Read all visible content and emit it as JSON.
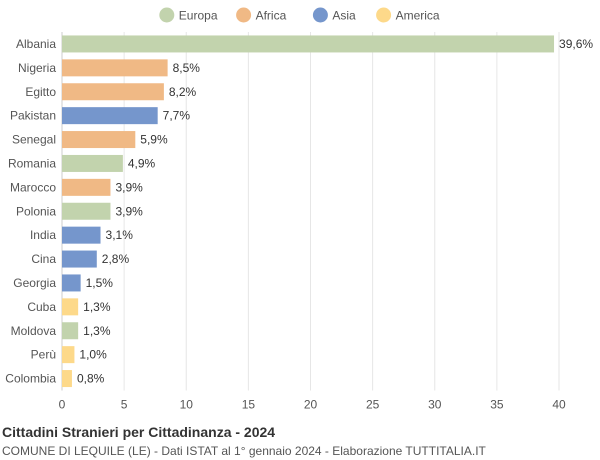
{
  "chart_data": {
    "type": "bar",
    "orientation": "horizontal",
    "title": "Cittadini Stranieri per Cittadinanza - 2024",
    "subtitle": "COMUNE DI LEQUILE (LE) - Dati ISTAT al 1° gennaio 2024 - Elaborazione TUTTITALIA.IT",
    "legend": [
      {
        "name": "Europa",
        "color": "#c2d3ad"
      },
      {
        "name": "Africa",
        "color": "#f0b985"
      },
      {
        "name": "Asia",
        "color": "#7596cc"
      },
      {
        "name": "America",
        "color": "#fdd98a"
      }
    ],
    "legend_position": "top-center",
    "categories": [
      "Albania",
      "Nigeria",
      "Egitto",
      "Pakistan",
      "Senegal",
      "Romania",
      "Marocco",
      "Polonia",
      "India",
      "Cina",
      "Georgia",
      "Cuba",
      "Moldova",
      "Perù",
      "Colombia"
    ],
    "values": [
      39.6,
      8.5,
      8.2,
      7.7,
      5.9,
      4.9,
      3.9,
      3.9,
      3.1,
      2.8,
      1.5,
      1.3,
      1.3,
      1.0,
      0.8
    ],
    "value_labels": [
      "39,6%",
      "8,5%",
      "8,2%",
      "7,7%",
      "5,9%",
      "4,9%",
      "3,9%",
      "3,9%",
      "3,1%",
      "2,8%",
      "1,5%",
      "1,3%",
      "1,3%",
      "1,0%",
      "0,8%"
    ],
    "groups": [
      "Europa",
      "Africa",
      "Africa",
      "Asia",
      "Africa",
      "Europa",
      "Africa",
      "Europa",
      "Asia",
      "Asia",
      "Asia",
      "America",
      "Europa",
      "America",
      "America"
    ],
    "xlim": [
      0,
      40
    ],
    "xticks": [
      0,
      5,
      10,
      15,
      20,
      25,
      30,
      35,
      40
    ],
    "grid": true
  }
}
